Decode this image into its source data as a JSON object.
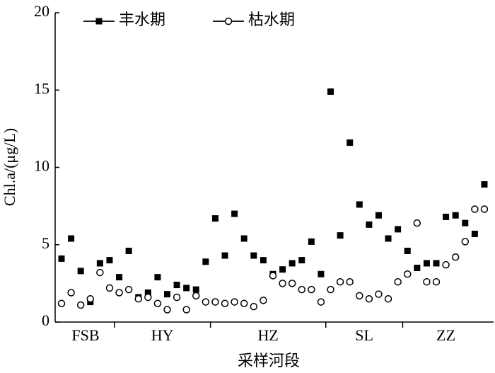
{
  "chart_data": {
    "type": "line",
    "x_label": "采样河段",
    "y_label": "Chl.a/(μg/L)",
    "categories": [
      "FSB",
      "FSB",
      "FSB",
      "FSB",
      "FSB",
      "FSB",
      "HY",
      "HY",
      "HY",
      "HY",
      "HY",
      "HY",
      "HY",
      "HY",
      "HY",
      "HY",
      "HZ",
      "HZ",
      "HZ",
      "HZ",
      "HZ",
      "HZ",
      "HZ",
      "HZ",
      "HZ",
      "HZ",
      "HZ",
      "HZ",
      "SL",
      "SL",
      "SL",
      "SL",
      "SL",
      "SL",
      "SL",
      "SL",
      "ZZ",
      "ZZ",
      "ZZ",
      "ZZ",
      "ZZ",
      "ZZ",
      "ZZ",
      "ZZ",
      "ZZ"
    ],
    "ylim": [
      0,
      20
    ],
    "yticks": [
      0,
      5,
      10,
      15,
      20
    ],
    "legend": "top-left",
    "series": [
      {
        "name": "丰水期",
        "color": "#000000",
        "marker": "filled-square",
        "values": [
          4.1,
          5.4,
          3.3,
          1.3,
          3.8,
          4.0,
          2.9,
          4.6,
          1.6,
          1.9,
          2.9,
          1.8,
          2.4,
          2.2,
          2.1,
          3.9,
          6.7,
          4.3,
          7.0,
          5.4,
          4.3,
          4.0,
          3.1,
          3.4,
          3.8,
          4.0,
          5.2,
          3.1,
          14.9,
          5.6,
          11.6,
          7.6,
          6.3,
          6.9,
          5.4,
          6.0,
          4.6,
          3.5,
          3.8,
          3.8,
          6.8,
          6.9,
          6.4,
          5.7,
          8.9
        ]
      },
      {
        "name": "枯水期",
        "color": "#000000",
        "marker": "open-circle",
        "values": [
          1.2,
          1.9,
          1.1,
          1.5,
          3.2,
          2.2,
          1.9,
          2.1,
          1.5,
          1.6,
          1.2,
          0.8,
          1.6,
          0.8,
          1.7,
          1.3,
          1.3,
          1.2,
          1.3,
          1.2,
          1.0,
          1.4,
          3.0,
          2.5,
          2.5,
          2.1,
          2.1,
          1.3,
          2.1,
          2.6,
          2.6,
          1.7,
          1.5,
          1.8,
          1.5,
          2.6,
          3.1,
          6.4,
          2.6,
          2.6,
          3.7,
          4.2,
          5.2,
          7.3,
          7.3
        ]
      }
    ]
  }
}
